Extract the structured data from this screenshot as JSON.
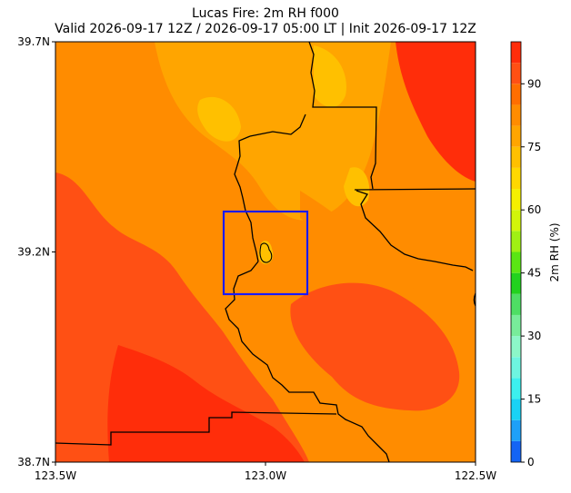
{
  "title": "Lucas Fire: 2m RH f000",
  "subtitle": "Valid 2026-09-17 12Z / 2026-09-17 05:00 LT | Init 2026-09-17 12Z",
  "chart_data": {
    "type": "heatmap",
    "variable": "2m RH",
    "x_ticks": [
      {
        "value": -123.5,
        "label": "123.5W"
      },
      {
        "value": -123.0,
        "label": "123.0W"
      },
      {
        "value": -122.5,
        "label": "122.5W"
      }
    ],
    "y_ticks": [
      {
        "value": 39.7,
        "label": "39.7N"
      },
      {
        "value": 39.2,
        "label": "39.2N"
      },
      {
        "value": 38.7,
        "label": "38.7N"
      }
    ],
    "xlim": [
      -123.5,
      -122.5
    ],
    "ylim": [
      38.7,
      39.7
    ],
    "colorbar": {
      "label": "2m RH (%)",
      "range": [
        0,
        100
      ],
      "ticks": [
        0,
        15,
        30,
        45,
        60,
        75,
        90
      ],
      "levels": [
        {
          "from": 0,
          "to": 5,
          "color": "#1464f4"
        },
        {
          "from": 5,
          "to": 10,
          "color": "#1ea0f8"
        },
        {
          "from": 10,
          "to": 15,
          "color": "#19d2f5"
        },
        {
          "from": 15,
          "to": 20,
          "color": "#3cf0ee"
        },
        {
          "from": 20,
          "to": 25,
          "color": "#6ef5e0"
        },
        {
          "from": 25,
          "to": 30,
          "color": "#8cf7c8"
        },
        {
          "from": 30,
          "to": 35,
          "color": "#78ec9a"
        },
        {
          "from": 35,
          "to": 40,
          "color": "#4ede64"
        },
        {
          "from": 40,
          "to": 45,
          "color": "#22d21e"
        },
        {
          "from": 45,
          "to": 50,
          "color": "#5ae614"
        },
        {
          "from": 50,
          "to": 55,
          "color": "#a0f014"
        },
        {
          "from": 55,
          "to": 60,
          "color": "#d2f50a"
        },
        {
          "from": 60,
          "to": 65,
          "color": "#f5f000"
        },
        {
          "from": 65,
          "to": 70,
          "color": "#ffd800"
        },
        {
          "from": 70,
          "to": 75,
          "color": "#ffc000"
        },
        {
          "from": 75,
          "to": 80,
          "color": "#ffa500"
        },
        {
          "from": 80,
          "to": 85,
          "color": "#ff8c00"
        },
        {
          "from": 85,
          "to": 90,
          "color": "#ff6e00"
        },
        {
          "from": 90,
          "to": 95,
          "color": "#ff5014"
        },
        {
          "from": 95,
          "to": 100,
          "color": "#ff2d0a"
        }
      ]
    },
    "regions": [
      {
        "name": "field-moist-southwest",
        "rh": 92
      },
      {
        "name": "field-moist-south",
        "rh": 95
      },
      {
        "name": "field-moist-east-pocket",
        "rh": 92
      },
      {
        "name": "field-moist-northeast",
        "rh": 95
      },
      {
        "name": "field-drier-north-band",
        "rh": 77
      },
      {
        "name": "field-dry-north-cores",
        "rh": 72
      },
      {
        "name": "field-drier-valley",
        "rh": 82
      },
      {
        "name": "field-dry-fire-area",
        "rh": 74
      }
    ],
    "box_color": "#1a1aff",
    "grid": false
  }
}
